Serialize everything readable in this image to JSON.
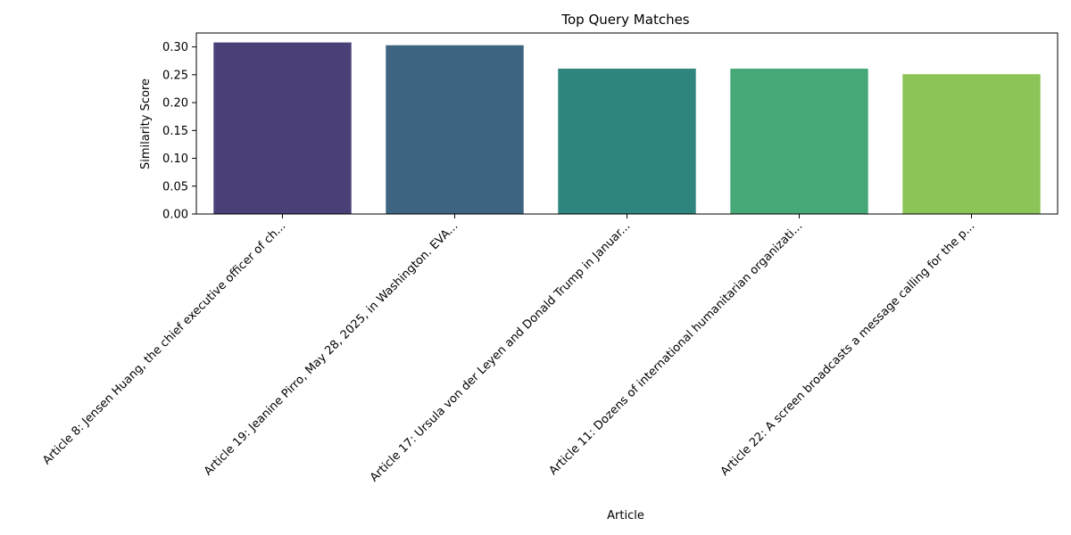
{
  "chart_data": {
    "type": "bar",
    "title": "Top Query Matches",
    "xlabel": "Article",
    "ylabel": "Similarity Score",
    "categories": [
      "Article 8: Jensen Huang, the chief executive officer of ch...",
      "Article 19: Jeanine Pirro, May 28, 2025, in Washington. EVA...",
      "Article 17: Ursula von der Leyen and Donald Trump in Januar...",
      "Article 11: Dozens of international humanitarian organizati...",
      "Article 22: A screen broadcasts a message calling for the p..."
    ],
    "values": [
      0.308,
      0.303,
      0.261,
      0.261,
      0.251
    ],
    "colors": [
      "#4a3f77",
      "#3d6481",
      "#2e857e",
      "#45a876",
      "#8dc458"
    ],
    "ylim": [
      0,
      0.325
    ],
    "yticks": [
      "0.00",
      "0.05",
      "0.10",
      "0.15",
      "0.20",
      "0.25",
      "0.30"
    ],
    "grid": false,
    "legend": "none"
  }
}
